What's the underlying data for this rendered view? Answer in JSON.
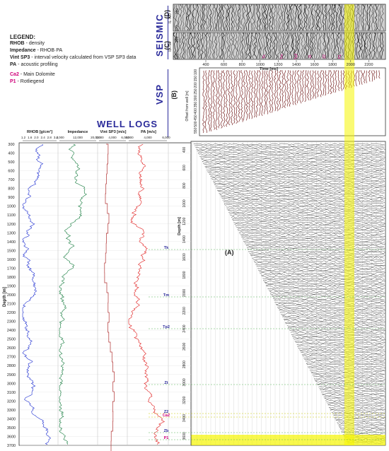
{
  "legend": {
    "title": "LEGEND:",
    "lines": [
      {
        "key": "RHOB",
        "desc": "- density"
      },
      {
        "key": "Impedance",
        "desc": "- RHOB·PA"
      },
      {
        "key": "Vint SP3",
        "desc": "- interval velocity calculated from VSP SP3 data"
      },
      {
        "key": "PA",
        "desc": "- acoustic profiling"
      }
    ],
    "markers": [
      {
        "key": "Ca2",
        "desc": "- Main Dolomite"
      },
      {
        "key": "P1",
        "desc": "- Rotliegend"
      }
    ]
  },
  "sections": {
    "seismic": "SEISMIC",
    "vsp": "VSP",
    "well_logs": "WELL LOGS"
  },
  "panel_labels": {
    "a": "(A)",
    "b": "(B)",
    "c": "(C)",
    "d": "(D)"
  },
  "well_logs": {
    "columns": [
      {
        "name": "RHOB [g/cm³]",
        "ticks": [
          "1.2",
          "1.6",
          "2.0",
          "2.4",
          "2.8",
          "3.2"
        ],
        "color": "#1a2bd0"
      },
      {
        "name": "Impedance",
        "ticks": [
          "4,000",
          "12,000",
          "20,000"
        ],
        "color": "#137a3c"
      },
      {
        "name": "Vint SP3 [m/s]",
        "ticks": [
          "2,000",
          "4,000",
          "6,000"
        ],
        "color": "#b03030"
      },
      {
        "name": "PA [m/s]",
        "ticks": [
          "2,000",
          "4,000",
          "6,000"
        ],
        "color": "#e01818"
      }
    ],
    "depth_label": "Depth [m]",
    "depths": [
      "300",
      "400",
      "500",
      "600",
      "700",
      "800",
      "900",
      "1000",
      "1100",
      "1200",
      "1300",
      "1400",
      "1500",
      "1600",
      "1700",
      "1800",
      "1900",
      "2000",
      "2100",
      "2200",
      "2300",
      "2400",
      "2500",
      "2600",
      "2700",
      "2800",
      "2900",
      "3000",
      "3100",
      "3200",
      "3300",
      "3400",
      "3500",
      "3600",
      "3700"
    ],
    "horizons": [
      "Tk",
      "Tm",
      "Tp2",
      "Zt",
      "Z2",
      "Ca2",
      "Zb",
      "P1"
    ]
  },
  "vsp": {
    "time_label": "Time [ms]",
    "time_ticks": [
      "400",
      "600",
      "800",
      "1000",
      "1200",
      "1400",
      "1600",
      "1800",
      "2000",
      "2200"
    ],
    "offset_label": "Offset from well [m]",
    "offset_ticks": [
      "100",
      "150",
      "200",
      "250",
      "300",
      "350",
      "400",
      "450",
      "500",
      "550"
    ],
    "depth_label": "Depth [m]",
    "depth_ticks": [
      "400",
      "600",
      "800",
      "1000",
      "1200",
      "1400",
      "1600",
      "1800",
      "2000",
      "2200",
      "2400",
      "2600",
      "2800",
      "3000",
      "3200",
      "3400",
      "3600"
    ]
  },
  "seismic": {
    "traces_label": "IL 790",
    "d_ticks": [
      "380",
      "370"
    ],
    "c_ticks": [
      "380",
      "370"
    ],
    "horizon_labels": [
      "Tk",
      "Tm",
      "Tp2",
      "Zt",
      "Z2",
      "P1"
    ]
  },
  "colors": {
    "rhob": "#1a2bd0",
    "impedance": "#137a3c",
    "vint": "#b03030",
    "pa": "#e01818",
    "highlight": "#f0f000",
    "accent": "#2a2a9a",
    "horizon": "#d0007a"
  }
}
